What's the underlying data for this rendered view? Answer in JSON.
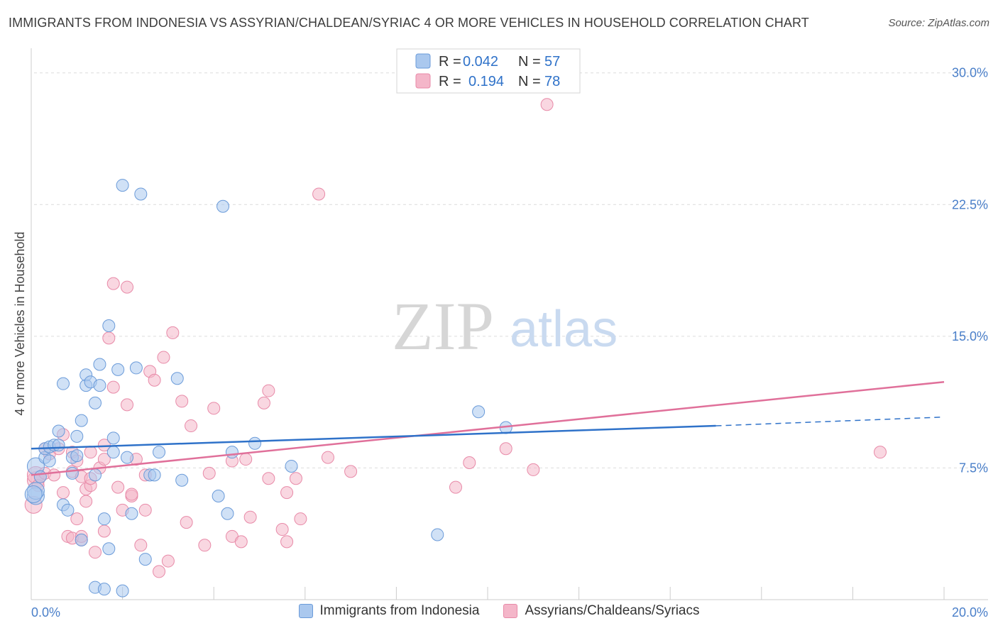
{
  "header": {
    "title": "IMMIGRANTS FROM INDONESIA VS ASSYRIAN/CHALDEAN/SYRIAC 4 OR MORE VEHICLES IN HOUSEHOLD CORRELATION CHART",
    "source": "Source: ZipAtlas.com"
  },
  "watermark": {
    "zip": "ZIP",
    "atlas": "atlas"
  },
  "legend_box": {
    "rows": [
      {
        "r_label": "R =",
        "r_value": "0.042",
        "n_label": "N =",
        "n_value": "57"
      },
      {
        "r_label": "R =",
        "r_value": "0.194",
        "n_label": "N =",
        "n_value": "78"
      }
    ]
  },
  "bottom_legend": {
    "items": [
      {
        "label": "Immigrants from Indonesia"
      },
      {
        "label": "Assyrians/Chaldeans/Syriacs"
      }
    ]
  },
  "colors": {
    "blue_fill": "#aac8ee",
    "blue_stroke": "#6b9bd9",
    "blue_line": "#2f72c9",
    "pink_fill": "#f4b6c9",
    "pink_stroke": "#e88aa8",
    "pink_line": "#e0709a",
    "tick_text": "#4a7fc9",
    "grid": "#dcdcdc"
  },
  "chart_data": {
    "type": "scatter",
    "title": "IMMIGRANTS FROM INDONESIA VS ASSYRIAN/CHALDEAN/SYRIAC 4 OR MORE VEHICLES IN HOUSEHOLD CORRELATION CHART",
    "xlabel": "",
    "ylabel": "4 or more Vehicles in Household",
    "xlim": [
      0,
      20
    ],
    "ylim": [
      0,
      31
    ],
    "x_tick_labels": [
      "0.0%",
      "20.0%"
    ],
    "y_ticks": [
      7.5,
      15.0,
      22.5,
      30.0
    ],
    "y_tick_labels": [
      "7.5%",
      "15.0%",
      "22.5%",
      "30.0%"
    ],
    "grid": true,
    "legend_position": "top-center",
    "series": [
      {
        "name": "Immigrants from Indonesia",
        "R": 0.042,
        "N": 57,
        "trend": {
          "x0": 0,
          "y0": 8.6,
          "x1": 15,
          "y1": 9.9,
          "dash_to_x": 20,
          "dash_to_y": 10.4
        },
        "points": [
          [
            0.1,
            5.9
          ],
          [
            0.1,
            6.2
          ],
          [
            0.1,
            7.6
          ],
          [
            0.2,
            7.0
          ],
          [
            0.3,
            8.1
          ],
          [
            0.3,
            8.6
          ],
          [
            0.4,
            7.9
          ],
          [
            0.4,
            8.7
          ],
          [
            0.5,
            8.8
          ],
          [
            0.6,
            9.6
          ],
          [
            0.6,
            8.8
          ],
          [
            0.7,
            12.3
          ],
          [
            0.7,
            5.4
          ],
          [
            0.8,
            5.1
          ],
          [
            0.9,
            8.1
          ],
          [
            0.9,
            7.2
          ],
          [
            1.0,
            9.3
          ],
          [
            1.0,
            8.2
          ],
          [
            1.1,
            3.4
          ],
          [
            1.1,
            10.2
          ],
          [
            1.2,
            12.2
          ],
          [
            1.2,
            12.8
          ],
          [
            1.3,
            12.4
          ],
          [
            1.4,
            7.1
          ],
          [
            1.4,
            0.7
          ],
          [
            1.4,
            11.2
          ],
          [
            1.5,
            12.2
          ],
          [
            1.5,
            13.4
          ],
          [
            1.6,
            4.6
          ],
          [
            1.7,
            2.9
          ],
          [
            1.7,
            15.6
          ],
          [
            1.8,
            9.2
          ],
          [
            1.8,
            8.4
          ],
          [
            1.9,
            13.1
          ],
          [
            2.0,
            23.6
          ],
          [
            2.1,
            8.1
          ],
          [
            2.2,
            4.9
          ],
          [
            2.4,
            23.1
          ],
          [
            2.3,
            13.2
          ],
          [
            2.5,
            2.3
          ],
          [
            2.6,
            7.1
          ],
          [
            2.7,
            7.1
          ],
          [
            2.8,
            8.4
          ],
          [
            3.3,
            6.8
          ],
          [
            3.2,
            12.6
          ],
          [
            4.2,
            22.4
          ],
          [
            4.1,
            5.9
          ],
          [
            4.4,
            8.4
          ],
          [
            4.3,
            4.9
          ],
          [
            4.9,
            8.9
          ],
          [
            5.7,
            7.6
          ],
          [
            8.9,
            3.7
          ],
          [
            9.8,
            10.7
          ],
          [
            10.4,
            9.8
          ],
          [
            1.6,
            0.6
          ],
          [
            2.0,
            0.5
          ],
          [
            0.05,
            6.0
          ]
        ]
      },
      {
        "name": "Assyrians/Chaldeans/Syriacs",
        "R": 0.194,
        "N": 78,
        "trend": {
          "x0": 0,
          "y0": 7.1,
          "x1": 20,
          "y1": 12.4
        },
        "points": [
          [
            0.05,
            5.4
          ],
          [
            0.1,
            6.8
          ],
          [
            0.1,
            7.1
          ],
          [
            0.15,
            6.5
          ],
          [
            0.2,
            7.0
          ],
          [
            0.3,
            7.2
          ],
          [
            0.3,
            8.6
          ],
          [
            0.4,
            8.3
          ],
          [
            0.5,
            7.1
          ],
          [
            0.6,
            8.6
          ],
          [
            0.7,
            9.4
          ],
          [
            0.7,
            6.1
          ],
          [
            0.8,
            3.6
          ],
          [
            0.9,
            7.3
          ],
          [
            0.9,
            8.4
          ],
          [
            1.0,
            4.6
          ],
          [
            1.0,
            7.9
          ],
          [
            1.1,
            7.0
          ],
          [
            1.1,
            3.4
          ],
          [
            1.2,
            5.6
          ],
          [
            1.2,
            6.3
          ],
          [
            1.3,
            6.5
          ],
          [
            1.3,
            8.4
          ],
          [
            1.3,
            6.9
          ],
          [
            1.4,
            2.7
          ],
          [
            1.5,
            7.5
          ],
          [
            1.6,
            3.9
          ],
          [
            1.6,
            8.0
          ],
          [
            1.6,
            8.8
          ],
          [
            1.7,
            14.9
          ],
          [
            1.8,
            12.1
          ],
          [
            1.8,
            18.0
          ],
          [
            1.9,
            6.4
          ],
          [
            2.0,
            5.1
          ],
          [
            2.1,
            11.1
          ],
          [
            2.1,
            17.8
          ],
          [
            2.2,
            5.9
          ],
          [
            2.2,
            6.0
          ],
          [
            2.3,
            8.0
          ],
          [
            2.4,
            3.1
          ],
          [
            2.5,
            5.1
          ],
          [
            2.5,
            7.1
          ],
          [
            2.6,
            13.0
          ],
          [
            2.7,
            12.5
          ],
          [
            2.8,
            1.6
          ],
          [
            2.9,
            13.8
          ],
          [
            3.0,
            2.2
          ],
          [
            3.1,
            15.2
          ],
          [
            3.3,
            11.3
          ],
          [
            3.4,
            4.4
          ],
          [
            3.5,
            9.9
          ],
          [
            3.8,
            3.1
          ],
          [
            3.9,
            7.2
          ],
          [
            4.0,
            10.9
          ],
          [
            4.4,
            7.9
          ],
          [
            4.4,
            3.6
          ],
          [
            4.6,
            3.3
          ],
          [
            4.7,
            8.0
          ],
          [
            4.8,
            4.7
          ],
          [
            5.1,
            11.2
          ],
          [
            5.2,
            11.9
          ],
          [
            5.2,
            6.9
          ],
          [
            5.5,
            4.0
          ],
          [
            5.6,
            6.1
          ],
          [
            5.6,
            3.3
          ],
          [
            5.8,
            6.9
          ],
          [
            5.9,
            4.6
          ],
          [
            6.3,
            23.1
          ],
          [
            6.5,
            8.1
          ],
          [
            7.0,
            7.3
          ],
          [
            9.3,
            6.4
          ],
          [
            9.6,
            7.8
          ],
          [
            10.4,
            8.6
          ],
          [
            11.0,
            7.4
          ],
          [
            11.3,
            28.2
          ],
          [
            18.6,
            8.4
          ],
          [
            0.9,
            3.5
          ],
          [
            1.1,
            3.6
          ]
        ]
      }
    ]
  }
}
